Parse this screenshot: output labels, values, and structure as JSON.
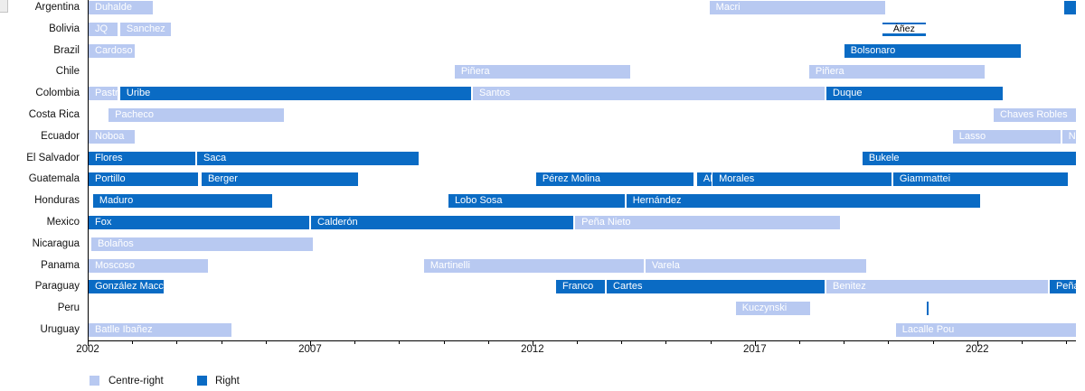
{
  "chart_data": {
    "type": "bar",
    "variant": "gantt-timeline",
    "title": "",
    "xlabel": "",
    "ylabel": "",
    "grid": false,
    "legend_position": "bottom-left",
    "x_axis": {
      "unit": "year",
      "min": 2002,
      "max": 2024.2,
      "major_ticks": [
        2002,
        2007,
        2012,
        2017,
        2022
      ],
      "minor_tick_interval": 1
    },
    "colors": {
      "centre_right": "#b8c9f1",
      "right": "#0a6bc4"
    },
    "legend": [
      {
        "label": "Centre-right",
        "color": "#b8c9f1"
      },
      {
        "label": "Right",
        "color": "#0a6bc4"
      }
    ],
    "rows": [
      {
        "country": "Argentina",
        "bars": [
          {
            "label": "Duhalde",
            "start": 2002.0,
            "end": 2003.45,
            "group": "centre-right"
          },
          {
            "label": "Macri",
            "start": 2015.96,
            "end": 2019.91,
            "group": "centre-right"
          },
          {
            "label": "",
            "start": 2023.93,
            "end": 2024.2,
            "group": "right"
          }
        ]
      },
      {
        "country": "Bolivia",
        "bars": [
          {
            "label": "JQ",
            "start": 2002.0,
            "end": 2002.65,
            "group": "centre-right"
          },
          {
            "label": "Sanchez",
            "start": 2002.71,
            "end": 2003.85,
            "group": "centre-right"
          },
          {
            "label": "Áñez",
            "start": 2019.85,
            "end": 2020.82,
            "group": "right",
            "label_style": "boxed-black"
          }
        ]
      },
      {
        "country": "Brazil",
        "bars": [
          {
            "label": "Cardoso",
            "start": 2002.0,
            "end": 2003.04,
            "group": "centre-right"
          },
          {
            "label": "Bolsonaro",
            "start": 2018.99,
            "end": 2022.96,
            "group": "right"
          }
        ]
      },
      {
        "country": "Chile",
        "bars": [
          {
            "label": "Piñera",
            "start": 2010.23,
            "end": 2014.18,
            "group": "centre-right"
          },
          {
            "label": "Piñera",
            "start": 2018.2,
            "end": 2022.14,
            "group": "centre-right"
          }
        ]
      },
      {
        "country": "Colombia",
        "bars": [
          {
            "label": "Pastrana",
            "start": 2002.0,
            "end": 2002.65,
            "group": "centre-right"
          },
          {
            "label": "Uribe",
            "start": 2002.71,
            "end": 2010.6,
            "group": "right"
          },
          {
            "label": "Santos",
            "start": 2010.64,
            "end": 2018.55,
            "group": "centre-right"
          },
          {
            "label": "Duque",
            "start": 2018.59,
            "end": 2022.55,
            "group": "right"
          }
        ]
      },
      {
        "country": "Costa Rica",
        "bars": [
          {
            "label": "Pacheco",
            "start": 2002.45,
            "end": 2006.39,
            "group": "centre-right"
          },
          {
            "label": "Chaves Robles",
            "start": 2022.35,
            "end": 2024.2,
            "group": "centre-right"
          }
        ]
      },
      {
        "country": "Ecuador",
        "bars": [
          {
            "label": "Noboa",
            "start": 2002.0,
            "end": 2003.04,
            "group": "centre-right"
          },
          {
            "label": "Lasso",
            "start": 2021.43,
            "end": 2023.85,
            "group": "centre-right"
          },
          {
            "label": "Noboa",
            "start": 2023.89,
            "end": 2024.2,
            "group": "centre-right"
          }
        ]
      },
      {
        "country": "El Salvador",
        "bars": [
          {
            "label": "Flores",
            "start": 2002.0,
            "end": 2004.4,
            "group": "right"
          },
          {
            "label": "Saca",
            "start": 2004.44,
            "end": 2009.42,
            "group": "right"
          },
          {
            "label": "Bukele",
            "start": 2019.4,
            "end": 2024.2,
            "group": "right"
          }
        ]
      },
      {
        "country": "Guatemala",
        "bars": [
          {
            "label": "Portillo",
            "start": 2002.0,
            "end": 2004.46,
            "group": "right"
          },
          {
            "label": "Berger",
            "start": 2004.54,
            "end": 2008.06,
            "group": "right"
          },
          {
            "label": "Pérez Molina",
            "start": 2012.06,
            "end": 2015.61,
            "group": "right"
          },
          {
            "label": "AM",
            "start": 2015.68,
            "end": 2016.0,
            "group": "right"
          },
          {
            "label": "Morales",
            "start": 2016.03,
            "end": 2020.05,
            "group": "right"
          },
          {
            "label": "Giammattei",
            "start": 2020.09,
            "end": 2024.01,
            "group": "right"
          }
        ]
      },
      {
        "country": "Honduras",
        "bars": [
          {
            "label": "Maduro",
            "start": 2002.1,
            "end": 2006.13,
            "group": "right"
          },
          {
            "label": "Lobo Sosa",
            "start": 2010.09,
            "end": 2014.05,
            "group": "right"
          },
          {
            "label": "Hernández",
            "start": 2014.09,
            "end": 2022.04,
            "group": "right"
          }
        ]
      },
      {
        "country": "Mexico",
        "bars": [
          {
            "label": "Fox",
            "start": 2002.0,
            "end": 2006.96,
            "group": "right"
          },
          {
            "label": "Calderón",
            "start": 2007.0,
            "end": 2012.9,
            "group": "right"
          },
          {
            "label": "Peña Nieto",
            "start": 2012.94,
            "end": 2018.89,
            "group": "centre-right"
          }
        ]
      },
      {
        "country": "Nicaragua",
        "bars": [
          {
            "label": "Bolaños",
            "start": 2002.06,
            "end": 2007.04,
            "group": "centre-right"
          }
        ]
      },
      {
        "country": "Panama",
        "bars": [
          {
            "label": "Moscoso",
            "start": 2002.0,
            "end": 2004.68,
            "group": "centre-right"
          },
          {
            "label": "Martinelli",
            "start": 2009.54,
            "end": 2014.48,
            "group": "centre-right"
          },
          {
            "label": "Varela",
            "start": 2014.52,
            "end": 2019.48,
            "group": "centre-right"
          }
        ]
      },
      {
        "country": "Paraguay",
        "bars": [
          {
            "label": "González Macchi",
            "start": 2002.0,
            "end": 2003.69,
            "group": "right"
          },
          {
            "label": "Franco",
            "start": 2012.51,
            "end": 2013.61,
            "group": "right"
          },
          {
            "label": "Cartes",
            "start": 2013.65,
            "end": 2018.55,
            "group": "right"
          },
          {
            "label": "Benitez",
            "start": 2018.59,
            "end": 2023.57,
            "group": "centre-right"
          },
          {
            "label": "Peña",
            "start": 2023.61,
            "end": 2024.2,
            "group": "right"
          }
        ]
      },
      {
        "country": "Peru",
        "bars": [
          {
            "label": "Kuczynski",
            "start": 2016.55,
            "end": 2018.22,
            "group": "centre-right"
          },
          {
            "label": "",
            "start": 2020.84,
            "end": 2020.88,
            "group": "right"
          }
        ]
      },
      {
        "country": "Uruguay",
        "bars": [
          {
            "label": "Batlle Ibañez",
            "start": 2002.0,
            "end": 2005.21,
            "group": "centre-right"
          },
          {
            "label": "Lacalle Pou",
            "start": 2020.15,
            "end": 2024.2,
            "group": "centre-right"
          }
        ]
      }
    ]
  }
}
